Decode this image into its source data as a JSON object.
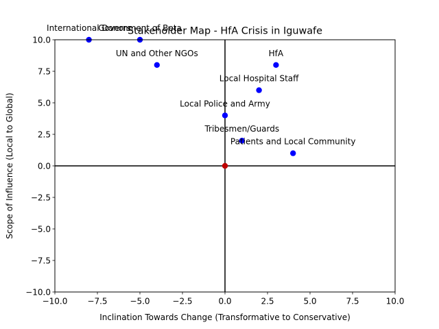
{
  "chart_data": {
    "type": "scatter",
    "title": "Stakeholder Map - HfA Crisis in Iguwafe",
    "xlabel": "Inclination Towards Change (Transformative to Conservative)",
    "ylabel": "Scope of Influence (Local to Global)",
    "xlim": [
      -10,
      10
    ],
    "ylim": [
      -10,
      10
    ],
    "x_ticks": [
      -10,
      -7.5,
      -5,
      -2.5,
      0,
      2.5,
      5,
      7.5,
      10
    ],
    "y_ticks": [
      -10,
      -7.5,
      -5,
      -2.5,
      0,
      2.5,
      5,
      7.5,
      10
    ],
    "x_tick_labels": [
      "−10.0",
      "−7.5",
      "−5.0",
      "−2.5",
      "0.0",
      "2.5",
      "5.0",
      "7.5",
      "10.0"
    ],
    "y_tick_labels": [
      "−10.0",
      "−7.5",
      "−5.0",
      "−2.5",
      "0.0",
      "2.5",
      "5.0",
      "7.5",
      "10.0"
    ],
    "grid": false,
    "reference_lines": {
      "x": 0,
      "y": 0
    },
    "points": [
      {
        "label": "International Donors",
        "x": -8,
        "y": 10
      },
      {
        "label": "Government of Beta",
        "x": -5,
        "y": 10
      },
      {
        "label": "UN and Other NGOs",
        "x": -4,
        "y": 8
      },
      {
        "label": "HfA",
        "x": 3,
        "y": 8
      },
      {
        "label": "Local Hospital Staff",
        "x": 2,
        "y": 6
      },
      {
        "label": "Local Police and Army",
        "x": 0,
        "y": 4
      },
      {
        "label": "Tribesmen/Guards",
        "x": 1,
        "y": 2
      },
      {
        "label": "Patients and Local Community",
        "x": 4,
        "y": 1
      }
    ],
    "origin_point": {
      "x": 0,
      "y": 0
    },
    "colors": {
      "points": "#0000ff",
      "origin": "#bf0000",
      "axes": "#000000"
    }
  }
}
